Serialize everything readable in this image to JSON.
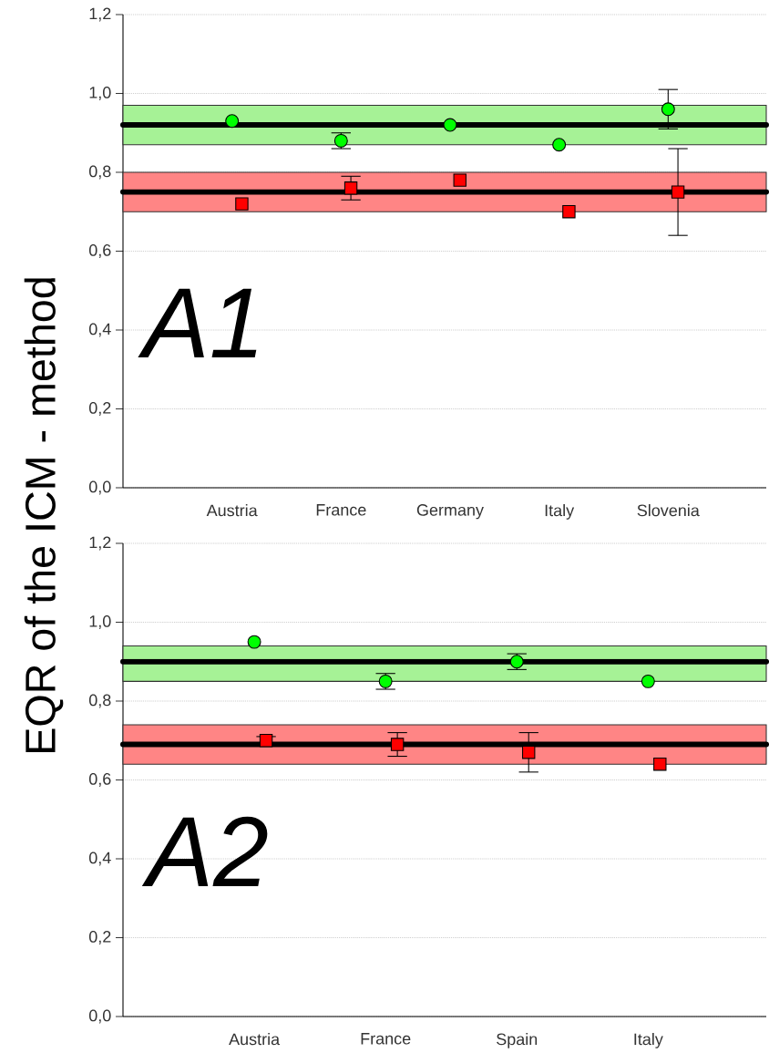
{
  "chart_data": [
    {
      "type": "scatter",
      "ylabel": "EQR of the ICM - method",
      "annotations": [
        "A1"
      ],
      "categories": [
        "Austria",
        "France",
        "Germany",
        "Italy",
        "Slovenia"
      ],
      "series": [
        {
          "color": "#00ff00",
          "marker": "circle",
          "values": [
            0.93,
            0.88,
            0.92,
            0.87,
            0.96
          ],
          "errors": [
            null,
            0.02,
            null,
            null,
            0.05
          ]
        },
        {
          "color": "#ff0000",
          "marker": "square",
          "values": [
            0.72,
            0.76,
            0.78,
            0.7,
            0.75
          ],
          "errors": [
            null,
            0.03,
            null,
            null,
            0.11
          ]
        }
      ],
      "bands": [
        {
          "axis": "y",
          "from": 0.87,
          "to": 0.97,
          "color": "#a6f296"
        },
        {
          "axis": "y",
          "from": 0.7,
          "to": 0.8,
          "color": "#ff8585"
        }
      ],
      "ref_lines": [
        {
          "axis": "y",
          "value": 0.92,
          "color": "#000000"
        },
        {
          "axis": "y",
          "value": 0.75,
          "color": "#000000"
        }
      ],
      "ylim": [
        0,
        1.2
      ],
      "yticks": [
        {
          "value": 0,
          "label": "0,0"
        },
        {
          "value": 0.2,
          "label": "0,2"
        },
        {
          "value": 0.4,
          "label": "0,4"
        },
        {
          "value": 0.6,
          "label": "0,6"
        },
        {
          "value": 0.8,
          "label": "0,8"
        },
        {
          "value": 1.0,
          "label": "1,0"
        },
        {
          "value": 1.2,
          "label": "1,2"
        }
      ],
      "grid": "y"
    },
    {
      "type": "scatter",
      "annotations": [
        "A2"
      ],
      "categories": [
        "Austria",
        "France",
        "Spain",
        "Italy"
      ],
      "series": [
        {
          "color": "#00ff00",
          "marker": "circle",
          "values": [
            0.95,
            0.85,
            0.9,
            0.85
          ],
          "errors": [
            null,
            0.02,
            0.02,
            null
          ]
        },
        {
          "color": "#ff0000",
          "marker": "square",
          "values": [
            0.7,
            0.69,
            0.67,
            0.64
          ],
          "errors": [
            0.01,
            0.03,
            0.05,
            null
          ]
        }
      ],
      "bands": [
        {
          "axis": "y",
          "from": 0.85,
          "to": 0.94,
          "color": "#a6f296"
        },
        {
          "axis": "y",
          "from": 0.64,
          "to": 0.74,
          "color": "#ff8585"
        }
      ],
      "ref_lines": [
        {
          "axis": "y",
          "value": 0.9,
          "color": "#000000"
        },
        {
          "axis": "y",
          "value": 0.69,
          "color": "#000000"
        }
      ],
      "ylim": [
        0,
        1.2
      ],
      "yticks": [
        {
          "value": 0,
          "label": "0,0"
        },
        {
          "value": 0.2,
          "label": "0,2"
        },
        {
          "value": 0.4,
          "label": "0,4"
        },
        {
          "value": 0.6,
          "label": "0,6"
        },
        {
          "value": 0.8,
          "label": "0,8"
        },
        {
          "value": 1.0,
          "label": "1,0"
        },
        {
          "value": 1.2,
          "label": "1,2"
        }
      ],
      "grid": "y"
    }
  ]
}
